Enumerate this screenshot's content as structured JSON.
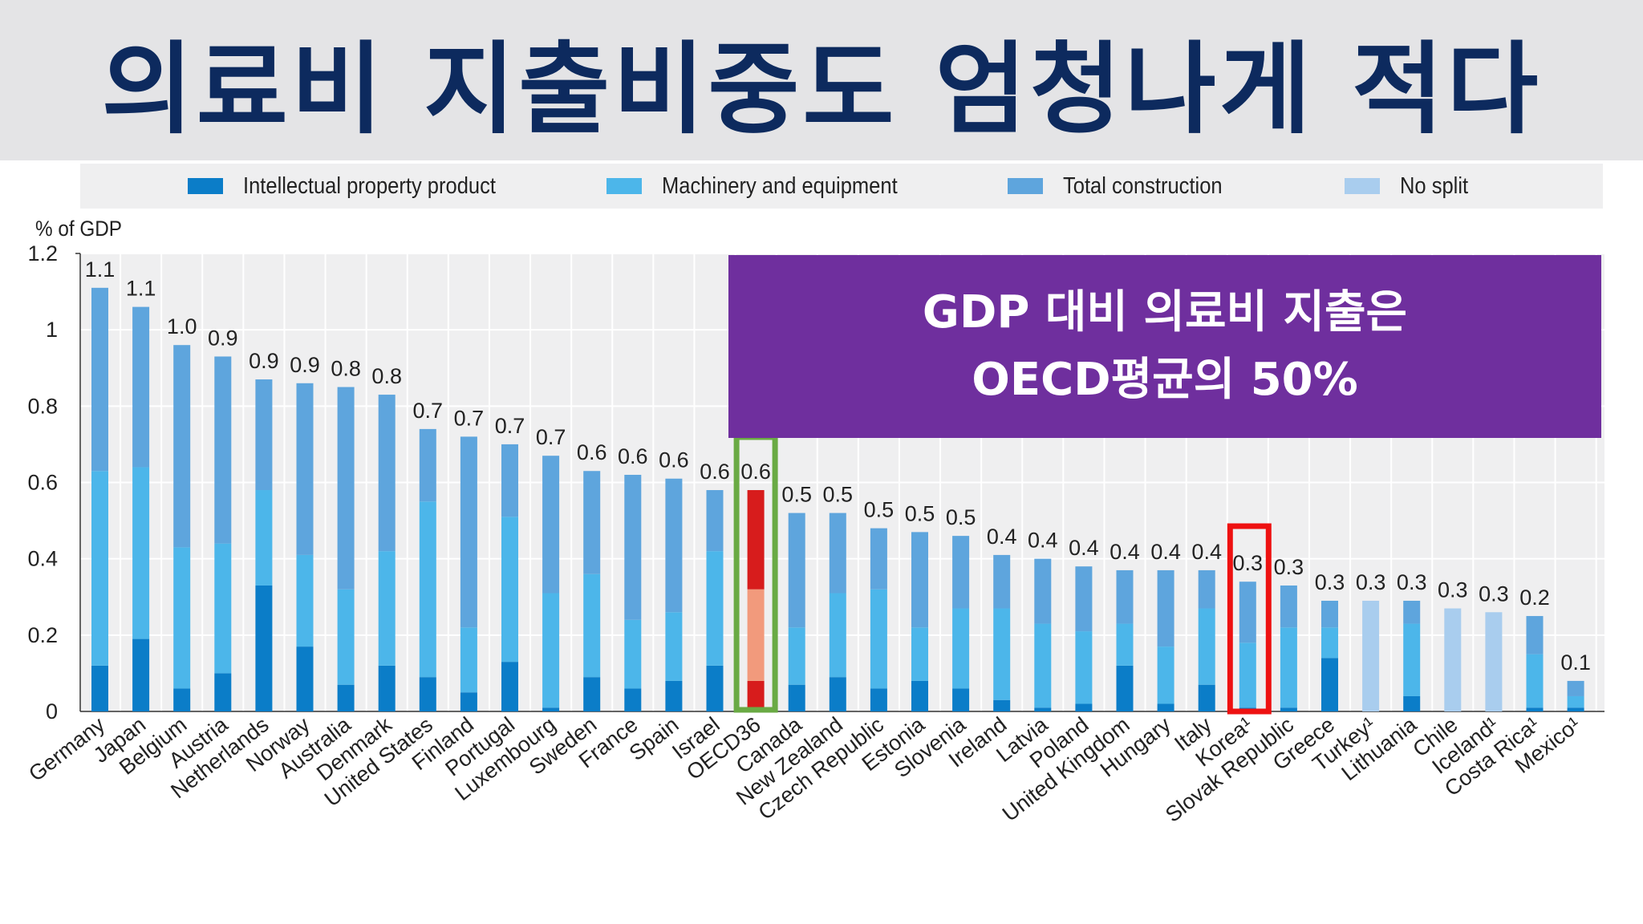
{
  "banner": {
    "title": "의료비 지출비중도 엄청나게 적다"
  },
  "callout": {
    "line1": "GDP 대비 의료비 지출은",
    "line2": "OECD평균의 50%"
  },
  "legend": [
    {
      "label": "Intellectual property product",
      "color": "#0b7dc8"
    },
    {
      "label": "Machinery and equipment",
      "color": "#4cb6ea"
    },
    {
      "label": "Total construction",
      "color": "#5ea5dd"
    },
    {
      "label": "No split",
      "color": "#a9cdee"
    }
  ],
  "highlight_colors": {
    "oecd_box": "#6aaa44",
    "korea_box": "#ee1111",
    "oecd_bar": [
      "#d71c1c",
      "#f29a7c",
      "#d71c1c"
    ]
  },
  "chart_data": {
    "type": "bar",
    "stacked": true,
    "ylabel": "% of GDP",
    "ylim": [
      0,
      1.2
    ],
    "yticks": [
      "0",
      "0.2",
      "0.4",
      "0.6",
      "0.8",
      "1",
      "1.2"
    ],
    "grid": true,
    "legend_position": "top",
    "categories": [
      "Germany",
      "Japan",
      "Belgium",
      "Austria",
      "Netherlands",
      "Norway",
      "Australia",
      "Denmark",
      "United States",
      "Finland",
      "Portugal",
      "Luxembourg",
      "Sweden",
      "France",
      "Spain",
      "Israel",
      "OECD36",
      "Canada",
      "New Zealand",
      "Czech Republic",
      "Estonia",
      "Slovenia",
      "Ireland",
      "Latvia",
      "Poland",
      "United Kingdom",
      "Hungary",
      "Italy",
      "Korea¹",
      "Slovak Republic",
      "Greece",
      "Turkey¹",
      "Lithuania",
      "Chile",
      "Iceland¹",
      "Costa Rica¹",
      "Mexico¹"
    ],
    "data_labels": [
      "1.1",
      "1.1",
      "1.0",
      "0.9",
      "0.9",
      "0.9",
      "0.8",
      "0.8",
      "0.7",
      "0.7",
      "0.7",
      "0.7",
      "0.6",
      "0.6",
      "0.6",
      "0.6",
      "0.6",
      "0.5",
      "0.5",
      "0.5",
      "0.5",
      "0.5",
      "0.4",
      "0.4",
      "0.4",
      "0.4",
      "0.4",
      "0.4",
      "0.3",
      "0.3",
      "0.3",
      "0.3",
      "0.3",
      "0.3",
      "0.3",
      "0.2",
      "0.1"
    ],
    "series": [
      {
        "name": "Intellectual property product",
        "values": [
          0.12,
          0.19,
          0.06,
          0.1,
          0.33,
          0.17,
          0.07,
          0.12,
          0.09,
          0.05,
          0.13,
          0.01,
          0.09,
          0.06,
          0.08,
          0.12,
          0.08,
          0.07,
          0.09,
          0.06,
          0.08,
          0.06,
          0.03,
          0.01,
          0.02,
          0.12,
          0.02,
          0.07,
          0.01,
          0.01,
          0.14,
          0,
          0.04,
          0,
          0,
          0.01,
          0.01
        ]
      },
      {
        "name": "Machinery and equipment",
        "values": [
          0.51,
          0.45,
          0.37,
          0.34,
          0.25,
          0.24,
          0.25,
          0.3,
          0.46,
          0.17,
          0.38,
          0.3,
          0.27,
          0.18,
          0.18,
          0.3,
          0.24,
          0.15,
          0.22,
          0.26,
          0.14,
          0.21,
          0.24,
          0.22,
          0.19,
          0.11,
          0.15,
          0.2,
          0.17,
          0.21,
          0.08,
          0,
          0.19,
          0,
          0,
          0.14,
          0.03
        ]
      },
      {
        "name": "Total construction",
        "values": [
          0.48,
          0.42,
          0.53,
          0.49,
          0.29,
          0.45,
          0.53,
          0.41,
          0.19,
          0.5,
          0.19,
          0.36,
          0.27,
          0.38,
          0.35,
          0.16,
          0.26,
          0.3,
          0.21,
          0.16,
          0.25,
          0.19,
          0.14,
          0.17,
          0.17,
          0.14,
          0.2,
          0.1,
          0.16,
          0.11,
          0.07,
          0,
          0.06,
          0,
          0,
          0.1,
          0.04
        ]
      },
      {
        "name": "No split",
        "values": [
          0,
          0,
          0,
          0,
          0,
          0,
          0,
          0,
          0,
          0,
          0,
          0,
          0,
          0,
          0,
          0,
          0,
          0,
          0,
          0,
          0,
          0,
          0,
          0,
          0,
          0,
          0,
          0,
          0,
          0,
          0,
          0.29,
          0,
          0.27,
          0.26,
          0,
          0
        ]
      }
    ],
    "highlighted": [
      "OECD36",
      "Korea¹"
    ]
  }
}
